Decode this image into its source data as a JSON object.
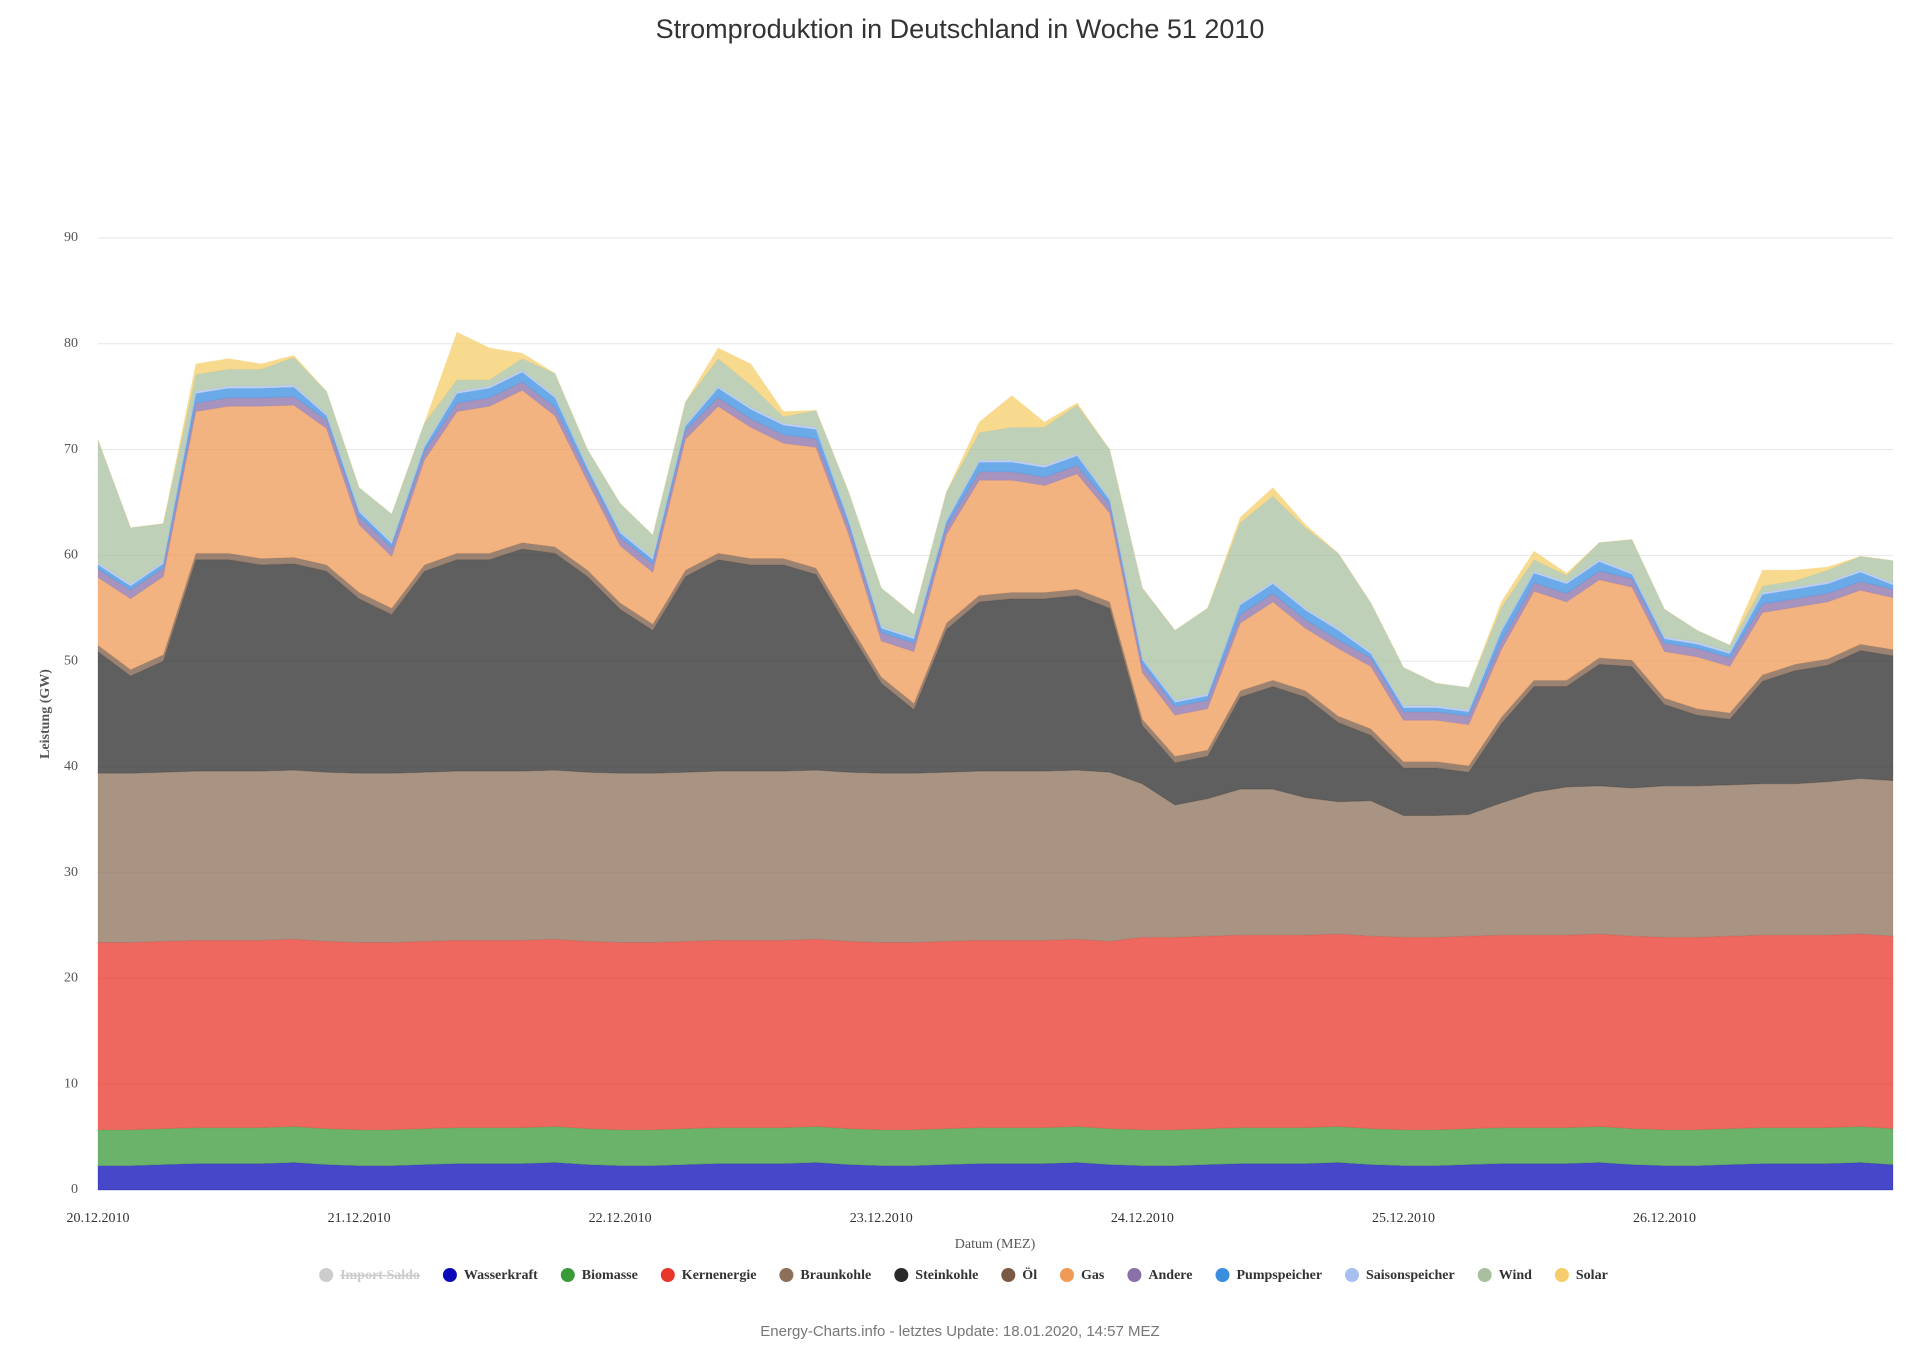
{
  "chart_data": {
    "type": "stacked_area",
    "title": "Stromproduktion in Deutschland in Woche 51 2010",
    "x_label": "Datum (MEZ)",
    "y_label": "Leistung (GW)",
    "footer": "Energy-Charts.info - letztes Update: 18.01.2020, 14:57 MEZ",
    "ylim": [
      0,
      90
    ],
    "yticks": [
      0,
      10,
      20,
      30,
      40,
      50,
      60,
      70,
      80,
      90
    ],
    "grid": true,
    "legend": "bottom",
    "categories": [
      "20.12.2010",
      null,
      null,
      null,
      null,
      null,
      null,
      null,
      "21.12.2010",
      null,
      null,
      null,
      null,
      null,
      null,
      null,
      "22.12.2010",
      null,
      null,
      null,
      null,
      null,
      null,
      null,
      "23.12.2010",
      null,
      null,
      null,
      null,
      null,
      null,
      null,
      "24.12.2010",
      null,
      null,
      null,
      null,
      null,
      null,
      null,
      "25.12.2010",
      null,
      null,
      null,
      null,
      null,
      null,
      null,
      "26.12.2010",
      null,
      null,
      null,
      null,
      null,
      null,
      null
    ],
    "series": [
      {
        "name": "Import Saldo",
        "color": "#c8c8c8",
        "hidden": true
      },
      {
        "name": "Wasserkraft",
        "color": "#0a0ab8",
        "values": [
          2.3,
          2.3,
          2.4,
          2.5,
          2.5,
          2.5,
          2.6,
          2.4,
          2.3,
          2.3,
          2.4,
          2.5,
          2.5,
          2.5,
          2.6,
          2.4,
          2.3,
          2.3,
          2.4,
          2.5,
          2.5,
          2.5,
          2.6,
          2.4,
          2.3,
          2.3,
          2.4,
          2.5,
          2.5,
          2.5,
          2.6,
          2.4,
          2.3,
          2.3,
          2.4,
          2.5,
          2.5,
          2.5,
          2.6,
          2.4,
          2.3,
          2.3,
          2.4,
          2.5,
          2.5,
          2.5,
          2.6,
          2.4,
          2.3,
          2.3,
          2.4,
          2.5,
          2.5,
          2.5,
          2.6,
          2.4
        ]
      },
      {
        "name": "Biomasse",
        "color": "#3a9a3a",
        "values": [
          3.4,
          3.4,
          3.4,
          3.4,
          3.4,
          3.4,
          3.4,
          3.4,
          3.4,
          3.4,
          3.4,
          3.4,
          3.4,
          3.4,
          3.4,
          3.4,
          3.4,
          3.4,
          3.4,
          3.4,
          3.4,
          3.4,
          3.4,
          3.4,
          3.4,
          3.4,
          3.4,
          3.4,
          3.4,
          3.4,
          3.4,
          3.4,
          3.4,
          3.4,
          3.4,
          3.4,
          3.4,
          3.4,
          3.4,
          3.4,
          3.4,
          3.4,
          3.4,
          3.4,
          3.4,
          3.4,
          3.4,
          3.4,
          3.4,
          3.4,
          3.4,
          3.4,
          3.4,
          3.4,
          3.4,
          3.4
        ]
      },
      {
        "name": "Kernenergie",
        "color": "#e8352a",
        "values": [
          17.7,
          17.7,
          17.7,
          17.7,
          17.7,
          17.7,
          17.7,
          17.7,
          17.7,
          17.7,
          17.7,
          17.7,
          17.7,
          17.7,
          17.7,
          17.7,
          17.7,
          17.7,
          17.7,
          17.7,
          17.7,
          17.7,
          17.7,
          17.7,
          17.7,
          17.7,
          17.7,
          17.7,
          17.7,
          17.7,
          17.7,
          17.7,
          18.2,
          18.2,
          18.2,
          18.2,
          18.2,
          18.2,
          18.2,
          18.2,
          18.2,
          18.2,
          18.2,
          18.2,
          18.2,
          18.2,
          18.2,
          18.2,
          18.2,
          18.2,
          18.2,
          18.2,
          18.2,
          18.2,
          18.2,
          18.2
        ]
      },
      {
        "name": "Braunkohle",
        "color": "#8c7059",
        "values": [
          16,
          16,
          16,
          16,
          16,
          16,
          16,
          16,
          16,
          16,
          16,
          16,
          16,
          16,
          16,
          16,
          16,
          16,
          16,
          16,
          16,
          16,
          16,
          16,
          16,
          16,
          16,
          16,
          16,
          16,
          16,
          16,
          14.5,
          12.5,
          13.0,
          13.8,
          13.8,
          13.0,
          12.5,
          12.8,
          11.5,
          11.5,
          11.5,
          12.5,
          13.5,
          14.0,
          14.0,
          14.0,
          14.3,
          14.3,
          14.3,
          14.3,
          14.3,
          14.5,
          14.7,
          14.7
        ]
      },
      {
        "name": "Steinkohle",
        "color": "#2a2a2a",
        "values": [
          11.5,
          9.2,
          10.5,
          20,
          20,
          19.5,
          19.5,
          19,
          16.5,
          15,
          19,
          20,
          20,
          21,
          20.5,
          18.5,
          15.5,
          13.5,
          18.5,
          20,
          19.5,
          19.5,
          18.5,
          13.5,
          8.5,
          6,
          13.5,
          16,
          16.3,
          16.3,
          16.5,
          15.5,
          5.5,
          4,
          4,
          8.7,
          9.7,
          9.5,
          7.5,
          6.2,
          4.5,
          4.5,
          4,
          7.5,
          10,
          9.5,
          11.5,
          11.5,
          7.7,
          6.7,
          6.2,
          9.7,
          10.7,
          11,
          12.1,
          11.8
        ]
      },
      {
        "name": "Öl",
        "color": "#7a5a45",
        "values": [
          0.6,
          0.6,
          0.6,
          0.6,
          0.6,
          0.6,
          0.6,
          0.6,
          0.6,
          0.6,
          0.6,
          0.6,
          0.6,
          0.6,
          0.6,
          0.6,
          0.6,
          0.6,
          0.6,
          0.6,
          0.6,
          0.6,
          0.6,
          0.6,
          0.6,
          0.6,
          0.6,
          0.6,
          0.6,
          0.6,
          0.6,
          0.6,
          0.6,
          0.6,
          0.6,
          0.6,
          0.6,
          0.6,
          0.6,
          0.6,
          0.6,
          0.6,
          0.6,
          0.6,
          0.6,
          0.6,
          0.6,
          0.6,
          0.6,
          0.6,
          0.6,
          0.6,
          0.6,
          0.6,
          0.6,
          0.6
        ]
      },
      {
        "name": "Gas",
        "color": "#ef9a56",
        "values": [
          6.4,
          6.7,
          7.4,
          13.4,
          13.9,
          14.4,
          14.4,
          12.9,
          6.4,
          4.9,
          9.9,
          13.4,
          13.9,
          14.4,
          12.4,
          8.4,
          5.4,
          4.9,
          12.4,
          13.9,
          12.4,
          10.9,
          11.4,
          8.4,
          3.4,
          4.9,
          8.4,
          10.9,
          10.6,
          10.1,
          10.9,
          8.4,
          4.4,
          3.9,
          3.9,
          6.4,
          7.4,
          5.9,
          6.4,
          5.9,
          3.9,
          3.9,
          3.9,
          6.4,
          8.4,
          7.4,
          7.4,
          6.9,
          4.4,
          4.9,
          4.4,
          5.9,
          5.4,
          5.4,
          5.1,
          4.9
        ]
      },
      {
        "name": "Andere",
        "color": "#8a70a8",
        "values": [
          0.8,
          0.8,
          0.8,
          0.8,
          0.8,
          0.8,
          0.8,
          0.8,
          0.8,
          0.8,
          0.8,
          0.8,
          0.8,
          0.8,
          0.8,
          0.8,
          0.8,
          0.8,
          0.8,
          0.8,
          0.8,
          0.8,
          0.8,
          0.8,
          0.8,
          0.8,
          0.8,
          0.8,
          0.8,
          0.8,
          0.8,
          0.8,
          0.8,
          0.8,
          0.8,
          0.8,
          0.8,
          0.8,
          0.8,
          0.8,
          0.8,
          0.8,
          0.8,
          0.8,
          0.8,
          0.8,
          0.8,
          0.8,
          0.8,
          0.8,
          0.8,
          0.8,
          0.8,
          0.8,
          0.8,
          0.8
        ]
      },
      {
        "name": "Pumpspeicher",
        "color": "#3a8ee0",
        "values": [
          0.4,
          0.4,
          0.4,
          0.9,
          0.9,
          0.9,
          0.9,
          0.4,
          0.4,
          0.4,
          0.4,
          0.9,
          0.9,
          0.9,
          0.9,
          0.4,
          0.4,
          0.4,
          0.4,
          0.9,
          0.9,
          0.9,
          0.9,
          0.4,
          0.4,
          0.4,
          0.4,
          0.9,
          0.9,
          0.9,
          0.9,
          0.4,
          0.4,
          0.4,
          0.4,
          0.9,
          0.9,
          0.9,
          0.9,
          0.4,
          0.4,
          0.4,
          0.4,
          0.9,
          0.9,
          0.9,
          0.9,
          0.4,
          0.4,
          0.4,
          0.4,
          0.9,
          0.9,
          0.9,
          0.9,
          0.4
        ]
      },
      {
        "name": "Saisonspeicher",
        "color": "#a8c0f0",
        "values": [
          0.2,
          0.2,
          0.2,
          0.2,
          0.2,
          0.2,
          0.2,
          0.2,
          0.2,
          0.2,
          0.2,
          0.2,
          0.2,
          0.2,
          0.2,
          0.2,
          0.2,
          0.2,
          0.2,
          0.2,
          0.2,
          0.2,
          0.2,
          0.2,
          0.2,
          0.2,
          0.2,
          0.2,
          0.2,
          0.2,
          0.2,
          0.2,
          0.2,
          0.2,
          0.2,
          0.2,
          0.2,
          0.2,
          0.2,
          0.2,
          0.2,
          0.2,
          0.2,
          0.2,
          0.2,
          0.2,
          0.2,
          0.2,
          0.2,
          0.2,
          0.2,
          0.2,
          0.2,
          0.2,
          0.2,
          0.2
        ]
      },
      {
        "name": "Wind",
        "color": "#a8c0a0",
        "values": [
          11.6,
          5.3,
          3.6,
          1.6,
          1.6,
          1.6,
          2.6,
          2.1,
          2.1,
          2.6,
          2.1,
          1.1,
          0.6,
          1.1,
          2.1,
          1.6,
          2.6,
          2.1,
          2.1,
          2.6,
          2.1,
          0.6,
          1.6,
          2.6,
          3.6,
          2.1,
          2.6,
          2.6,
          3.1,
          3.6,
          4.6,
          4.6,
          6.6,
          6.6,
          8.1,
          7.6,
          8.1,
          7.6,
          7.1,
          4.6,
          3.6,
          2.1,
          2.1,
          2.1,
          1.1,
          0.6,
          1.6,
          3.1,
          2.6,
          1.1,
          0.6,
          0.6,
          0.6,
          1.1,
          1.3,
          2.1
        ]
      },
      {
        "name": "Solar",
        "color": "#f5cd6a",
        "values": [
          0,
          0,
          0,
          1.0,
          1.0,
          0.5,
          0.2,
          0,
          0,
          0,
          0,
          4.5,
          3.0,
          0.5,
          0,
          0,
          0,
          0,
          0,
          1.0,
          2.0,
          0.5,
          0,
          0,
          0,
          0,
          0,
          1.0,
          3.0,
          0.5,
          0.2,
          0,
          0,
          0,
          0,
          0.5,
          0.8,
          0.3,
          0,
          0,
          0,
          0,
          0,
          0.5,
          0.8,
          0.2,
          0,
          0,
          0,
          0,
          0,
          1.5,
          1.0,
          0.3,
          0,
          0
        ]
      }
    ]
  }
}
